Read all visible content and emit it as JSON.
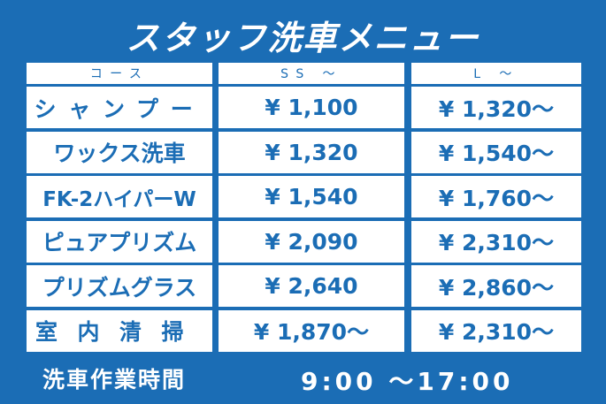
{
  "header": {
    "title": "スタッフ洗車メニュー"
  },
  "table": {
    "columns": [
      "コース",
      "SS ～",
      "L ～"
    ],
    "rows": [
      [
        "シャンプー",
        "¥ 1,100",
        "¥ 1,320～"
      ],
      [
        "ワックス洗車",
        "¥ 1,320",
        "¥ 1,540～"
      ],
      [
        "FK-2ハイパーW",
        "¥ 1,540",
        "¥ 1,760～"
      ],
      [
        "ピュアプリズム",
        "¥ 2,090",
        "¥ 2,310～"
      ],
      [
        "プリズムグラス",
        "¥ 2,640",
        "¥ 2,860～"
      ],
      [
        "室内清掃",
        "¥ 1,870～",
        "¥ 2,310～"
      ]
    ]
  },
  "footer": {
    "label": "洗車作業時間",
    "hours": "9:00 ～17:00"
  }
}
